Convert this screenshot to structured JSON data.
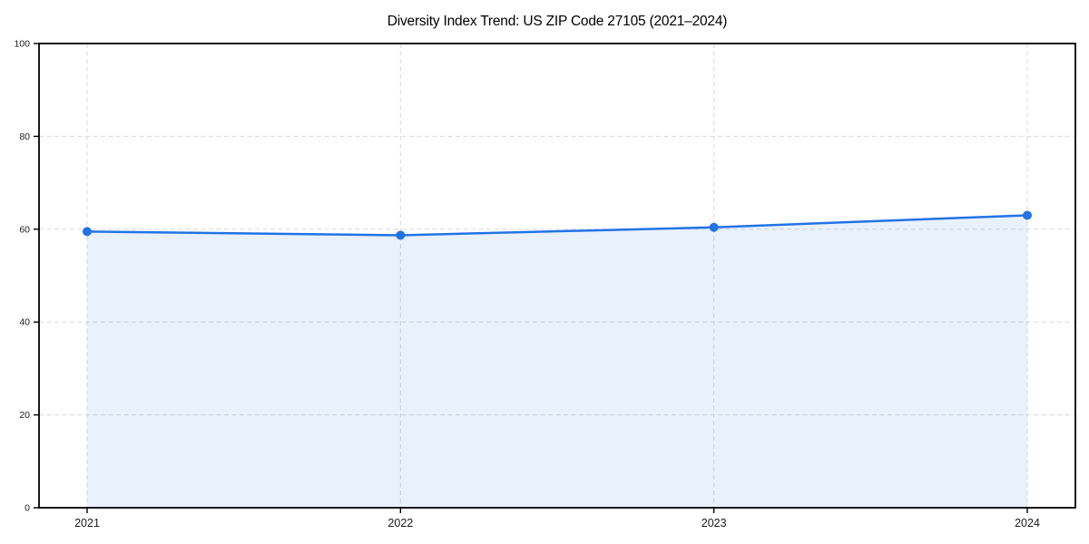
{
  "chart_data": {
    "type": "line",
    "title": "Diversity Index Trend: US ZIP Code 27105 (2021–2024)",
    "x": [
      "2021",
      "2022",
      "2023",
      "2024"
    ],
    "series": [
      {
        "name": "Diversity Index",
        "values": [
          59.5,
          58.7,
          60.4,
          63.0
        ]
      }
    ],
    "xlabel": "",
    "ylabel": "",
    "ylim": [
      0,
      100
    ],
    "yticks": [
      0,
      20,
      40,
      60,
      80,
      100
    ],
    "grid": "dashed, horizontal and vertical",
    "legend": "none",
    "area_fill": true,
    "colors": {
      "line": "#2273e6",
      "marker": "#2273e6",
      "fill": "#2273e6",
      "fill_opacity": "0.10",
      "grid": "#d9d9d9",
      "spine": "#000000",
      "tick_text": "#1a1a1a",
      "background": "#ffffff"
    }
  }
}
